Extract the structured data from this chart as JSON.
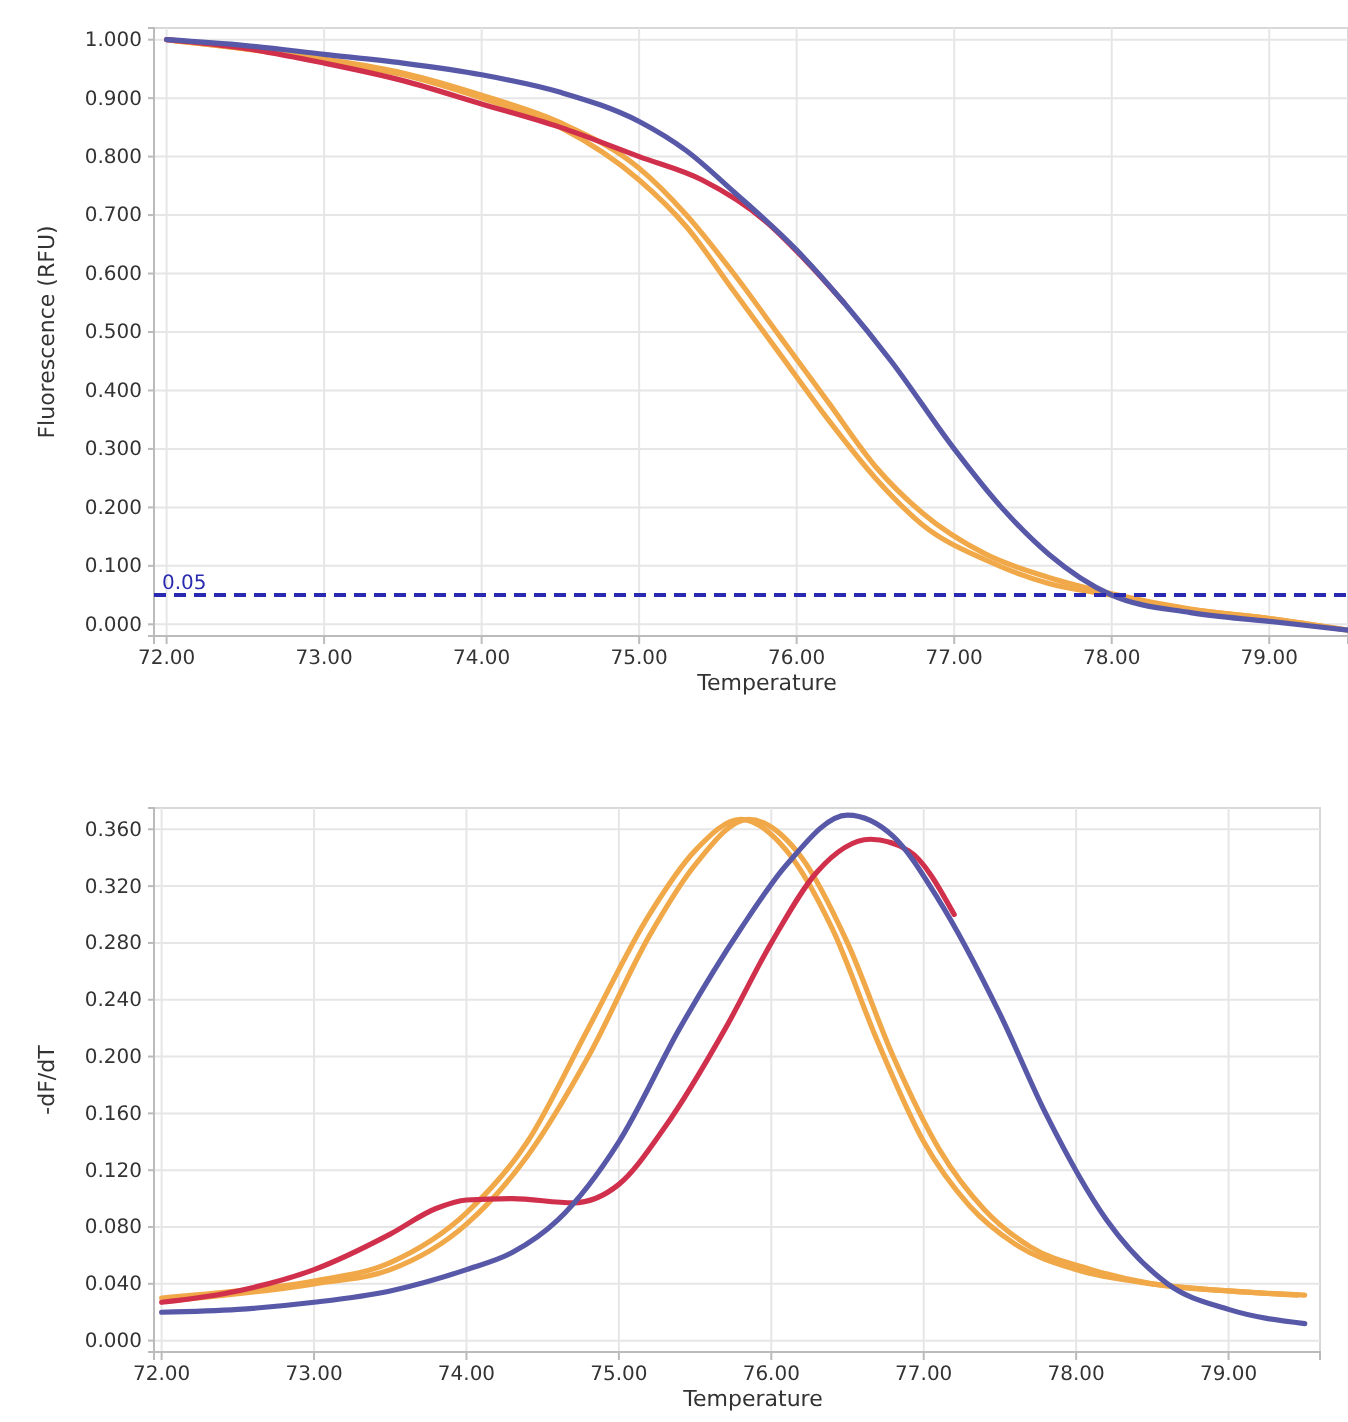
{
  "chart_data": [
    {
      "type": "line",
      "xlabel": "Temperature",
      "ylabel": "Fluorescence (RFU)",
      "xlim": [
        71.92,
        79.5
      ],
      "ylim": [
        -0.02,
        1.02
      ],
      "xticks": [
        {
          "value": 72,
          "label": "72.00"
        },
        {
          "value": 73,
          "label": "73.00"
        },
        {
          "value": 74,
          "label": "74.00"
        },
        {
          "value": 75,
          "label": "75.00"
        },
        {
          "value": 76,
          "label": "76.00"
        },
        {
          "value": 77,
          "label": "77.00"
        },
        {
          "value": 78,
          "label": "78.00"
        },
        {
          "value": 79,
          "label": "79.00"
        }
      ],
      "yticks": [
        {
          "value": 0,
          "label": "0.000"
        },
        {
          "value": 0.1,
          "label": "0.100"
        },
        {
          "value": 0.2,
          "label": "0.200"
        },
        {
          "value": 0.3,
          "label": "0.300"
        },
        {
          "value": 0.4,
          "label": "0.400"
        },
        {
          "value": 0.5,
          "label": "0.500"
        },
        {
          "value": 0.6,
          "label": "0.600"
        },
        {
          "value": 0.7,
          "label": "0.700"
        },
        {
          "value": 0.8,
          "label": "0.800"
        },
        {
          "value": 0.9,
          "label": "0.900"
        },
        {
          "value": 1,
          "label": "1.000"
        }
      ],
      "grid": true,
      "line_style": "solid",
      "ref_lines": [
        {
          "axis": "y",
          "value": 0.05,
          "label": "0.05",
          "color": "#2a2ab0",
          "line_style": "dashed"
        }
      ],
      "series": [
        {
          "color": "#f0a848",
          "x": [
            72,
            73,
            73.5,
            74,
            74.5,
            75,
            75.3,
            75.6,
            75.9,
            76.2,
            76.5,
            76.8,
            77.2,
            77.6,
            78,
            78.5,
            79,
            79.5
          ],
          "values": [
            1.0,
            0.965,
            0.94,
            0.9,
            0.85,
            0.76,
            0.68,
            0.57,
            0.46,
            0.35,
            0.25,
            0.17,
            0.11,
            0.07,
            0.05,
            0.025,
            0.01,
            -0.01
          ]
        },
        {
          "color": "#f0a848",
          "x": [
            72.05,
            73,
            73.5,
            74,
            74.5,
            75,
            75.3,
            75.6,
            75.9,
            76.2,
            76.5,
            76.8,
            77.2,
            77.6,
            78,
            78.5,
            79,
            79.45
          ],
          "values": [
            0.998,
            0.967,
            0.943,
            0.905,
            0.858,
            0.78,
            0.7,
            0.6,
            0.49,
            0.38,
            0.27,
            0.19,
            0.12,
            0.08,
            0.052,
            0.026,
            0.01,
            -0.008
          ]
        },
        {
          "color": "#d0304c",
          "x": [
            72,
            72.5,
            73,
            73.5,
            74,
            74.5,
            75,
            75.4,
            75.8,
            76.1,
            76.3
          ],
          "values": [
            1.0,
            0.985,
            0.96,
            0.93,
            0.89,
            0.85,
            0.8,
            0.76,
            0.69,
            0.61,
            0.55
          ]
        },
        {
          "color": "#5858a8",
          "x": [
            72,
            72.5,
            73,
            73.5,
            74,
            74.5,
            75,
            75.3,
            75.6,
            76,
            76.3,
            76.6,
            77,
            77.3,
            77.6,
            78,
            78.5,
            79,
            79.5
          ],
          "values": [
            1.0,
            0.99,
            0.975,
            0.96,
            0.94,
            0.91,
            0.86,
            0.81,
            0.74,
            0.64,
            0.55,
            0.45,
            0.3,
            0.2,
            0.12,
            0.05,
            0.02,
            0.005,
            -0.01
          ]
        }
      ]
    },
    {
      "type": "line",
      "xlabel": "Temperature",
      "ylabel": "-dF/dT",
      "xlim": [
        71.95,
        79.6
      ],
      "ylim": [
        -0.008,
        0.375
      ],
      "xticks": [
        {
          "value": 72,
          "label": "72.00"
        },
        {
          "value": 73,
          "label": "73.00"
        },
        {
          "value": 74,
          "label": "74.00"
        },
        {
          "value": 75,
          "label": "75.00"
        },
        {
          "value": 76,
          "label": "76.00"
        },
        {
          "value": 77,
          "label": "77.00"
        },
        {
          "value": 78,
          "label": "78.00"
        },
        {
          "value": 79,
          "label": "79.00"
        }
      ],
      "yticks": [
        {
          "value": 0,
          "label": "0.000"
        },
        {
          "value": 0.04,
          "label": "0.040"
        },
        {
          "value": 0.08,
          "label": "0.080"
        },
        {
          "value": 0.12,
          "label": "0.120"
        },
        {
          "value": 0.16,
          "label": "0.160"
        },
        {
          "value": 0.2,
          "label": "0.200"
        },
        {
          "value": 0.24,
          "label": "0.240"
        },
        {
          "value": 0.28,
          "label": "0.280"
        },
        {
          "value": 0.32,
          "label": "0.320"
        },
        {
          "value": 0.36,
          "label": "0.360"
        }
      ],
      "grid": true,
      "line_style": "solid",
      "series": [
        {
          "color": "#f0a848",
          "x": [
            72,
            72.5,
            73,
            73.5,
            74,
            74.4,
            74.8,
            75.2,
            75.5,
            75.8,
            76.1,
            76.4,
            76.7,
            77,
            77.3,
            77.6,
            78,
            78.5,
            79,
            79.5
          ],
          "values": [
            0.03,
            0.035,
            0.042,
            0.055,
            0.09,
            0.14,
            0.22,
            0.3,
            0.345,
            0.367,
            0.345,
            0.29,
            0.21,
            0.14,
            0.095,
            0.068,
            0.05,
            0.04,
            0.035,
            0.032
          ]
        },
        {
          "color": "#f0a848",
          "x": [
            72.05,
            73,
            73.5,
            74,
            74.4,
            74.8,
            75.2,
            75.5,
            75.85,
            76.2,
            76.5,
            76.8,
            77.1,
            77.4,
            77.7,
            78.1,
            78.5,
            79,
            79.45
          ],
          "values": [
            0.028,
            0.04,
            0.05,
            0.082,
            0.13,
            0.2,
            0.285,
            0.335,
            0.367,
            0.34,
            0.28,
            0.2,
            0.135,
            0.092,
            0.066,
            0.05,
            0.04,
            0.035,
            0.032
          ]
        },
        {
          "color": "#d0304c",
          "x": [
            72,
            72.5,
            73,
            73.5,
            73.8,
            74,
            74.3,
            74.7,
            75,
            75.3,
            75.7,
            76,
            76.3,
            76.65,
            76.9,
            77.2
          ],
          "values": [
            0.027,
            0.035,
            0.05,
            0.075,
            0.093,
            0.099,
            0.1,
            0.097,
            0.11,
            0.15,
            0.22,
            0.28,
            0.33,
            0.353,
            0.345,
            0.3
          ]
        },
        {
          "color": "#5858a8",
          "x": [
            72,
            72.5,
            73,
            73.5,
            74,
            74.3,
            74.6,
            75,
            75.4,
            75.8,
            76.1,
            76.5,
            76.8,
            77.1,
            77.5,
            77.8,
            78.2,
            78.6,
            79,
            79.5
          ],
          "values": [
            0.02,
            0.022,
            0.027,
            0.035,
            0.05,
            0.062,
            0.085,
            0.14,
            0.22,
            0.29,
            0.335,
            0.37,
            0.355,
            0.31,
            0.23,
            0.16,
            0.085,
            0.04,
            0.022,
            0.012
          ]
        }
      ]
    }
  ]
}
